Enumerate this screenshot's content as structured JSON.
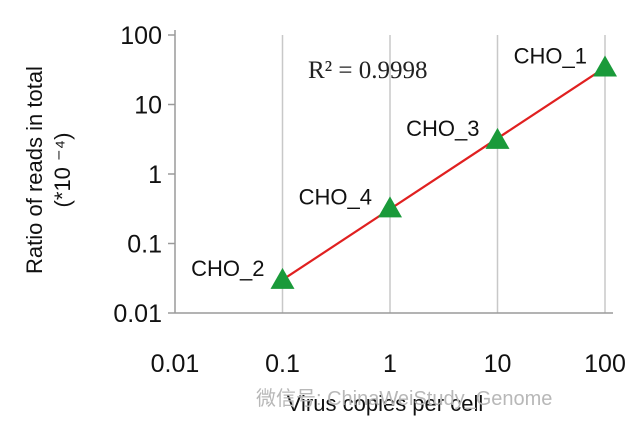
{
  "chart_data": {
    "type": "scatter",
    "scale": "log-log",
    "xlabel": "Virus copies per cell",
    "ylabel_line1": "Ratio of reads in total",
    "ylabel_line2": "(*10 ⁻⁴)",
    "xlim": [
      0.01,
      100
    ],
    "ylim": [
      0.01,
      100
    ],
    "x_ticks": [
      "0.01",
      "0.1",
      "1",
      "10",
      "100"
    ],
    "y_ticks": [
      "0.01",
      "0.1",
      "1",
      "10",
      "100"
    ],
    "grid": "vertical gridlines at x ticks",
    "annotation": "R² = 0.9998",
    "points": [
      {
        "label": "CHO_2",
        "x": 0.1,
        "y": 0.03
      },
      {
        "label": "CHO_4",
        "x": 1,
        "y": 0.32
      },
      {
        "label": "CHO_3",
        "x": 10,
        "y": 3.1
      },
      {
        "label": "CHO_1",
        "x": 100,
        "y": 34
      }
    ],
    "trendline": {
      "from": [
        0.1,
        0.03
      ],
      "to": [
        100,
        34
      ]
    },
    "marker_color": "#1a9a3a",
    "trendline_color": "#e02020",
    "watermark": "微信号: ChinaWeiStudy_Genome"
  }
}
